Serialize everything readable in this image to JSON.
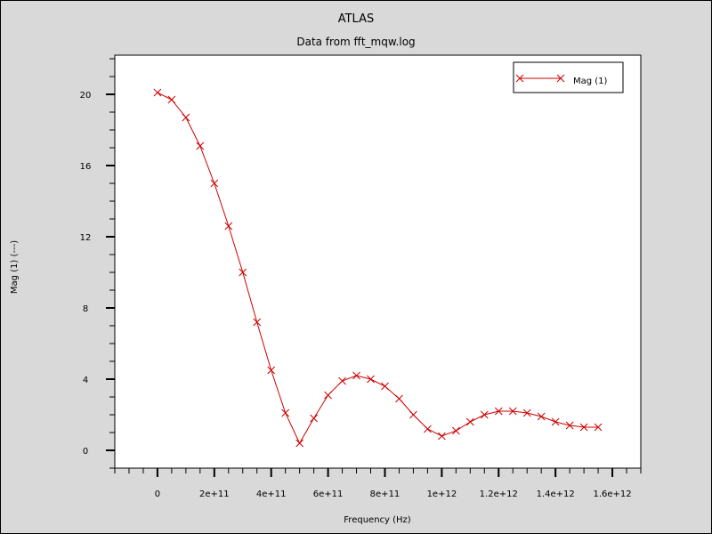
{
  "chart_data": {
    "type": "line",
    "title": "ATLAS",
    "subtitle": "Data from fft_mqw.log",
    "xlabel": "Frequency (Hz)",
    "ylabel": "Mag (1) (---)",
    "xlim": [
      -150000000000.0,
      1700000000000.0
    ],
    "ylim": [
      -1.0,
      22.2
    ],
    "x_ticks": [
      0,
      200000000000.0,
      400000000000.0,
      600000000000.0,
      800000000000.0,
      1000000000000.0,
      1200000000000.0,
      1400000000000.0,
      1600000000000.0
    ],
    "x_tick_labels": [
      "0",
      "2e+11",
      "4e+11",
      "6e+11",
      "8e+11",
      "1e+12",
      "1.2e+12",
      "1.4e+12",
      "1.6e+12"
    ],
    "y_ticks": [
      0,
      4,
      8,
      12,
      16,
      20
    ],
    "y_tick_labels": [
      "0",
      "4",
      "8",
      "12",
      "16",
      "20"
    ],
    "grid": false,
    "legend_position": "top-right",
    "colors": {
      "series": "#cc0000",
      "plot_bg": "#ffffff",
      "page_bg": "#d9d9d9"
    },
    "series": [
      {
        "name": "Mag (1)",
        "marker": "x",
        "x": [
          0,
          50000000000.0,
          100000000000.0,
          150000000000.0,
          200000000000.0,
          250000000000.0,
          300000000000.0,
          350000000000.0,
          400000000000.0,
          450000000000.0,
          500000000000.0,
          550000000000.0,
          600000000000.0,
          650000000000.0,
          700000000000.0,
          750000000000.0,
          800000000000.0,
          850000000000.0,
          900000000000.0,
          950000000000.0,
          1000000000000.0,
          1050000000000.0,
          1100000000000.0,
          1150000000000.0,
          1200000000000.0,
          1250000000000.0,
          1300000000000.0,
          1350000000000.0,
          1400000000000.0,
          1450000000000.0,
          1500000000000.0,
          1550000000000.0
        ],
        "y": [
          20.1,
          19.7,
          18.7,
          17.1,
          15.0,
          12.6,
          10.0,
          7.2,
          4.5,
          2.1,
          0.4,
          1.8,
          3.1,
          3.9,
          4.2,
          4.0,
          3.6,
          2.9,
          2.0,
          1.2,
          0.8,
          1.1,
          1.6,
          2.0,
          2.2,
          2.2,
          2.1,
          1.9,
          1.6,
          1.4,
          1.3,
          1.3
        ]
      }
    ]
  }
}
